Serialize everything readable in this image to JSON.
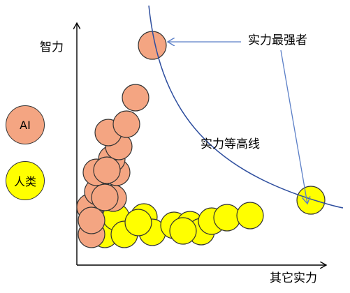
{
  "labels": {
    "y_axis": "智力",
    "x_axis": "其它实力",
    "strongest": "实力最强者",
    "contour": "实力等高线"
  },
  "legend": [
    {
      "label": "AI",
      "color": "#f4a582"
    },
    {
      "label": "人类",
      "color": "#ffff00"
    }
  ],
  "colors": {
    "ai_fill": "#f4a582",
    "human_fill": "#ffff00",
    "circle_stroke": "#333333",
    "curve": "#2f4f9f",
    "arrow": "#5b7fc7",
    "axis": "#000000"
  },
  "groups": {
    "ai_count": 15,
    "human_count": 14
  }
}
